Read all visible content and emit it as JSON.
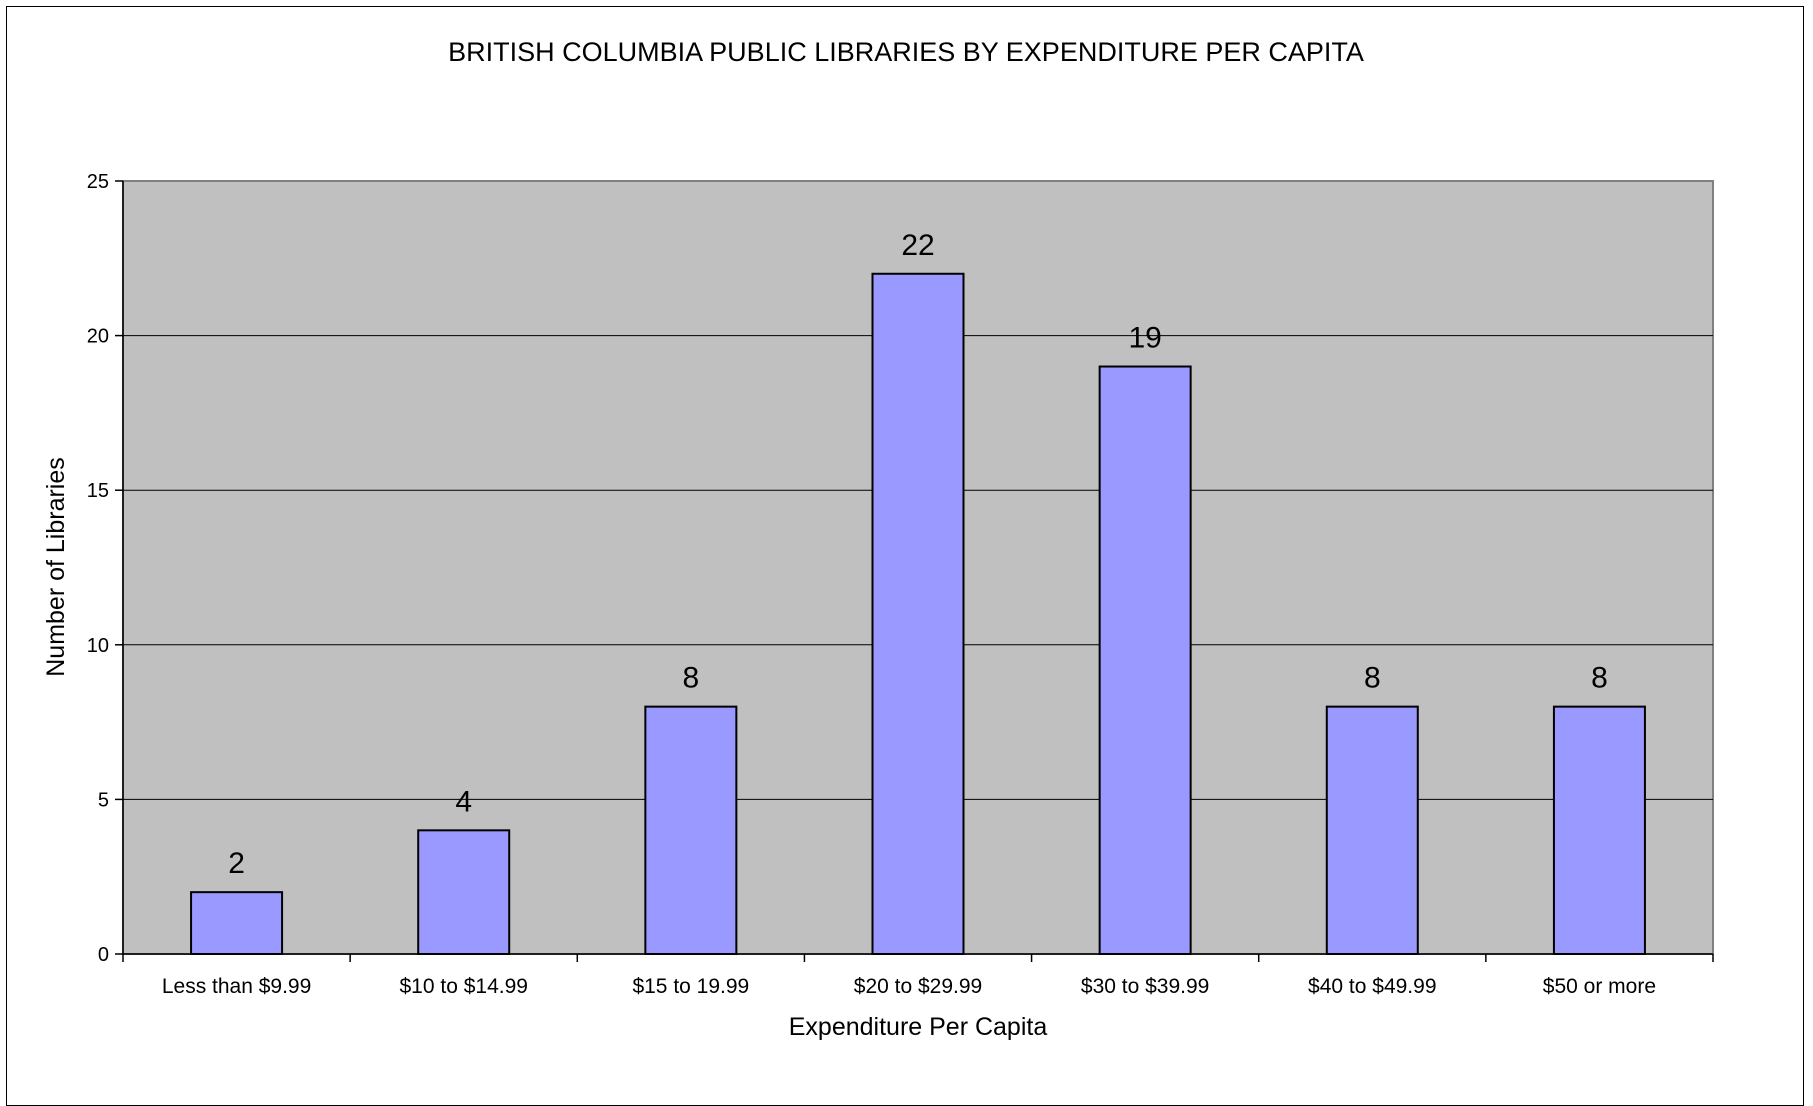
{
  "chart_data": {
    "type": "bar",
    "title": "BRITISH COLUMBIA PUBLIC LIBRARIES BY EXPENDITURE PER CAPITA",
    "xlabel": "Expenditure Per Capita",
    "ylabel": "Number of Libraries",
    "categories": [
      "Less than $9.99",
      "$10 to $14.99",
      "$15 to 19.99",
      "$20 to $29.99",
      "$30 to $39.99",
      "$40 to $49.99",
      "$50 or more"
    ],
    "values": [
      2,
      4,
      8,
      22,
      19,
      8,
      8
    ],
    "ylim": [
      0,
      25
    ],
    "yticks": [
      "0",
      "5",
      "10",
      "15",
      "20",
      "25"
    ],
    "data_labels": [
      "2",
      "4",
      "8",
      "22",
      "19",
      "8",
      "8"
    ],
    "grid": true,
    "legend": "none",
    "colors": {
      "bar_fill": "#9999ff",
      "bar_stroke": "#000000",
      "plot_background": "#c0c0c0",
      "gridline": "#000000"
    }
  }
}
